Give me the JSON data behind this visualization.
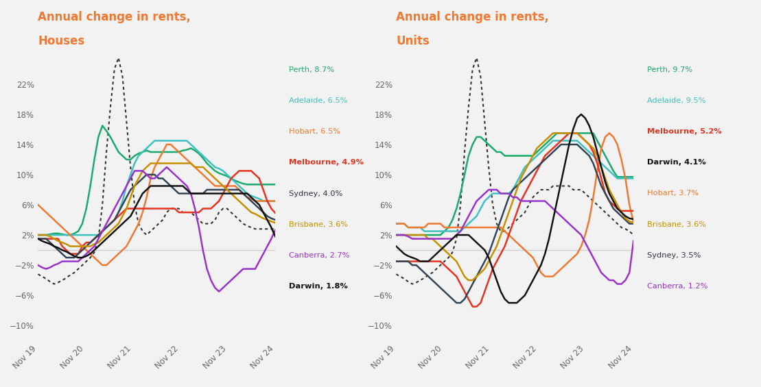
{
  "background_color": "#f2f2f2",
  "title_houses": "Annual change in rents,\nHouses",
  "title_units": "Annual change in rents,\nUnits",
  "title_color": "#f07830",
  "x_labels": [
    "Nov 19",
    "Nov 20",
    "Nov 21",
    "Nov 22",
    "Nov 23",
    "Nov 24"
  ],
  "ylim": [
    -12,
    27
  ],
  "yticks": [
    -10,
    -6,
    -2,
    2,
    6,
    10,
    14,
    18,
    22
  ],
  "colors": {
    "Perth": "#1aaa6e",
    "Adelaide": "#40c0c0",
    "Hobart": "#f07830",
    "Melbourne": "#e8321e",
    "Sydney": "#222233",
    "Brisbane": "#c89000",
    "Canberra": "#9932cc",
    "Darwin": "#222233",
    "dotted": "#333333"
  },
  "houses_legend": [
    {
      "label": "Perth, 8.7%",
      "color": "#1aaa6e",
      "bold": false
    },
    {
      "label": "Adelaide, 6.5%",
      "color": "#40c0c0",
      "bold": false
    },
    {
      "label": "Hobart, 6.5%",
      "color": "#f07830",
      "bold": false
    },
    {
      "label": "Melbourne, 4.9%",
      "color": "#e8321e",
      "bold": true
    },
    {
      "label": "Sydney, 4.0%",
      "color": "#333344",
      "bold": false
    },
    {
      "label": "Brisbane, 3.6%",
      "color": "#c89000",
      "bold": false
    },
    {
      "label": "Canberra, 2.7%",
      "color": "#9932cc",
      "bold": false
    },
    {
      "label": "Darwin, 1.8%",
      "color": "#111111",
      "bold": true
    }
  ],
  "units_legend": [
    {
      "label": "Perth, 9.7%",
      "color": "#1aaa6e",
      "bold": false
    },
    {
      "label": "Adelaide, 9.5%",
      "color": "#40c0c0",
      "bold": false
    },
    {
      "label": "Melbourne, 5.2%",
      "color": "#e8321e",
      "bold": true
    },
    {
      "label": "Darwin, 4.1%",
      "color": "#111111",
      "bold": true
    },
    {
      "label": "Hobart, 3.7%",
      "color": "#f07830",
      "bold": false
    },
    {
      "label": "Brisbane, 3.6%",
      "color": "#c89000",
      "bold": false
    },
    {
      "label": "Sydney, 3.5%",
      "color": "#333344",
      "bold": false
    },
    {
      "label": "Canberra, 1.2%",
      "color": "#9932cc",
      "bold": false
    }
  ],
  "houses": {
    "Perth": [
      2.0,
      2.0,
      2.0,
      2.1,
      2.2,
      2.2,
      2.1,
      2.0,
      2.0,
      2.2,
      2.5,
      3.5,
      5.5,
      8.5,
      12.0,
      15.0,
      16.5,
      15.8,
      15.0,
      14.0,
      13.0,
      12.5,
      12.0,
      12.0,
      12.5,
      12.8,
      13.0,
      13.2,
      13.0,
      13.0,
      13.0,
      13.0,
      13.0,
      13.0,
      13.0,
      13.0,
      13.2,
      13.3,
      13.5,
      13.2,
      12.8,
      12.2,
      11.5,
      11.0,
      10.5,
      10.2,
      10.0,
      9.8,
      9.5,
      9.2,
      9.0,
      8.8,
      8.7,
      8.7,
      8.7,
      8.7,
      8.7,
      8.7,
      8.7,
      8.7
    ],
    "Adelaide": [
      2.0,
      2.0,
      2.0,
      2.0,
      2.0,
      2.0,
      2.0,
      2.0,
      2.0,
      2.0,
      2.0,
      2.0,
      2.0,
      2.0,
      2.0,
      2.0,
      2.5,
      3.0,
      3.5,
      4.0,
      5.0,
      6.5,
      8.5,
      10.0,
      11.5,
      12.5,
      13.0,
      13.5,
      14.0,
      14.5,
      14.5,
      14.5,
      14.5,
      14.5,
      14.5,
      14.5,
      14.5,
      14.5,
      14.0,
      13.5,
      13.0,
      12.5,
      12.0,
      11.5,
      11.0,
      10.8,
      10.5,
      10.0,
      9.5,
      9.0,
      8.5,
      8.0,
      7.5,
      7.2,
      7.0,
      6.8,
      6.5,
      6.5,
      6.5,
      6.5
    ],
    "Hobart": [
      6.0,
      5.5,
      5.0,
      4.5,
      4.0,
      3.5,
      3.0,
      2.5,
      2.0,
      1.5,
      1.0,
      0.5,
      0.0,
      -0.5,
      -1.0,
      -1.5,
      -2.0,
      -2.0,
      -1.5,
      -1.0,
      -0.5,
      0.0,
      0.5,
      1.5,
      2.5,
      3.5,
      5.0,
      7.0,
      9.5,
      11.0,
      12.0,
      13.0,
      14.0,
      14.0,
      13.5,
      13.0,
      12.5,
      12.0,
      11.5,
      11.0,
      10.5,
      10.0,
      9.5,
      9.0,
      8.5,
      8.5,
      8.5,
      8.5,
      8.5,
      8.5,
      8.0,
      7.5,
      7.0,
      6.8,
      6.5,
      6.5,
      6.5,
      6.5,
      6.5,
      6.5
    ],
    "Melbourne": [
      1.5,
      1.5,
      1.5,
      1.5,
      1.5,
      1.5,
      0.5,
      0.0,
      -0.5,
      -0.5,
      -0.5,
      0.5,
      1.0,
      1.0,
      1.5,
      2.0,
      2.5,
      3.0,
      3.5,
      4.0,
      4.5,
      5.0,
      5.5,
      5.5,
      5.5,
      5.5,
      5.5,
      5.5,
      5.5,
      5.5,
      5.5,
      5.5,
      5.5,
      5.5,
      5.5,
      5.0,
      5.0,
      5.0,
      5.0,
      5.0,
      5.0,
      5.5,
      5.5,
      5.5,
      6.0,
      6.5,
      7.5,
      8.5,
      9.5,
      10.0,
      10.5,
      10.5,
      10.5,
      10.5,
      10.0,
      9.5,
      8.0,
      6.5,
      5.5,
      4.9
    ],
    "Sydney": [
      1.5,
      1.5,
      1.5,
      1.0,
      0.5,
      0.0,
      -0.5,
      -1.0,
      -1.0,
      -1.0,
      -0.5,
      0.0,
      0.5,
      1.0,
      1.5,
      2.0,
      2.5,
      3.0,
      3.5,
      4.0,
      5.0,
      6.0,
      7.0,
      8.0,
      8.5,
      9.0,
      9.5,
      10.0,
      10.0,
      10.0,
      9.5,
      9.5,
      9.0,
      8.5,
      8.0,
      7.5,
      7.5,
      7.5,
      7.5,
      7.5,
      7.5,
      7.5,
      8.0,
      8.0,
      8.0,
      8.0,
      8.0,
      8.0,
      8.0,
      8.0,
      8.0,
      7.5,
      7.0,
      6.5,
      6.0,
      5.5,
      5.0,
      4.5,
      4.2,
      4.0
    ],
    "Brisbane": [
      2.0,
      2.0,
      2.0,
      1.8,
      1.5,
      1.2,
      1.0,
      0.8,
      0.5,
      0.5,
      0.5,
      0.5,
      0.5,
      0.5,
      0.8,
      1.0,
      1.5,
      2.0,
      2.5,
      3.0,
      3.5,
      4.5,
      5.5,
      7.0,
      8.5,
      9.5,
      10.5,
      11.0,
      11.5,
      11.5,
      11.5,
      11.5,
      11.5,
      11.5,
      11.5,
      11.5,
      11.5,
      11.5,
      11.5,
      11.0,
      11.0,
      11.0,
      10.5,
      10.0,
      9.5,
      9.0,
      8.5,
      8.0,
      7.5,
      7.0,
      6.5,
      6.0,
      5.5,
      5.0,
      4.8,
      4.5,
      4.2,
      4.0,
      3.8,
      3.6
    ],
    "Canberra": [
      -2.0,
      -2.3,
      -2.5,
      -2.3,
      -2.0,
      -1.8,
      -1.5,
      -1.5,
      -1.5,
      -1.5,
      -1.5,
      -1.0,
      -0.5,
      0.0,
      0.5,
      1.5,
      2.5,
      3.5,
      4.5,
      5.5,
      6.5,
      7.5,
      8.5,
      9.5,
      10.5,
      10.5,
      10.5,
      10.0,
      9.5,
      9.5,
      10.0,
      10.5,
      11.0,
      10.5,
      10.0,
      9.5,
      9.0,
      8.5,
      7.5,
      5.5,
      3.0,
      0.0,
      -2.5,
      -4.0,
      -5.0,
      -5.5,
      -5.0,
      -4.5,
      -4.0,
      -3.5,
      -3.0,
      -2.5,
      -2.5,
      -2.5,
      -2.5,
      -1.5,
      -0.5,
      0.5,
      1.5,
      2.7
    ],
    "Darwin": [
      1.5,
      1.2,
      1.0,
      0.8,
      0.5,
      0.3,
      0.0,
      -0.2,
      -0.5,
      -0.8,
      -1.0,
      -1.0,
      -0.8,
      -0.5,
      0.0,
      0.5,
      1.0,
      1.5,
      2.0,
      2.5,
      3.0,
      3.5,
      4.0,
      4.5,
      5.5,
      6.5,
      7.5,
      8.0,
      8.5,
      8.5,
      8.5,
      8.5,
      8.5,
      8.5,
      8.5,
      8.5,
      8.5,
      8.0,
      7.5,
      7.5,
      7.5,
      7.5,
      7.5,
      7.5,
      7.5,
      7.5,
      7.5,
      7.5,
      7.5,
      7.5,
      7.5,
      7.5,
      7.5,
      7.0,
      6.5,
      6.0,
      5.0,
      4.0,
      3.0,
      1.8
    ],
    "dotted": [
      -3.2,
      -3.5,
      -3.8,
      -4.2,
      -4.5,
      -4.3,
      -4.0,
      -3.7,
      -3.3,
      -3.0,
      -2.5,
      -2.0,
      -1.5,
      -1.0,
      -0.3,
      1.5,
      6.0,
      13.0,
      19.0,
      24.0,
      25.5,
      23.0,
      17.0,
      11.0,
      6.0,
      3.5,
      2.5,
      2.0,
      2.5,
      3.0,
      3.5,
      4.0,
      5.0,
      5.5,
      5.5,
      5.5,
      5.0,
      5.0,
      5.0,
      4.5,
      4.0,
      3.5,
      3.5,
      3.5,
      4.0,
      5.0,
      5.5,
      5.5,
      5.0,
      4.5,
      4.0,
      3.5,
      3.2,
      3.0,
      2.8,
      2.8,
      2.8,
      2.8,
      2.8,
      2.8
    ]
  },
  "units": {
    "Perth": [
      2.0,
      2.0,
      2.0,
      2.0,
      2.0,
      2.0,
      2.0,
      2.0,
      2.0,
      2.0,
      2.0,
      2.0,
      2.5,
      3.0,
      4.0,
      5.5,
      7.5,
      10.0,
      12.5,
      14.0,
      15.0,
      15.0,
      14.5,
      14.0,
      13.5,
      13.0,
      13.0,
      12.5,
      12.5,
      12.5,
      12.5,
      12.5,
      12.5,
      12.5,
      12.5,
      13.0,
      13.5,
      14.0,
      14.5,
      15.0,
      15.5,
      15.5,
      15.5,
      15.5,
      15.5,
      15.5,
      15.5,
      15.5,
      15.5,
      15.5,
      14.5,
      13.5,
      12.5,
      11.5,
      10.5,
      9.7,
      9.7,
      9.7,
      9.7,
      9.7
    ],
    "Adelaide": [
      3.5,
      3.5,
      3.5,
      3.0,
      3.0,
      3.0,
      3.0,
      2.5,
      2.5,
      2.5,
      2.5,
      2.5,
      2.5,
      2.5,
      2.5,
      2.5,
      2.5,
      3.0,
      3.5,
      4.0,
      4.5,
      5.5,
      6.5,
      7.0,
      7.5,
      7.5,
      7.5,
      7.5,
      7.5,
      8.0,
      9.0,
      10.0,
      11.0,
      11.5,
      12.0,
      12.5,
      13.0,
      13.5,
      14.0,
      14.5,
      14.5,
      14.5,
      14.5,
      14.5,
      14.5,
      14.5,
      14.0,
      13.5,
      13.0,
      12.5,
      12.0,
      11.5,
      11.0,
      10.5,
      10.0,
      9.5,
      9.5,
      9.5,
      9.5,
      9.5
    ],
    "Hobart": [
      3.5,
      3.5,
      3.5,
      3.0,
      3.0,
      3.0,
      3.0,
      3.0,
      3.5,
      3.5,
      3.5,
      3.5,
      3.0,
      3.0,
      3.0,
      3.0,
      3.0,
      3.0,
      3.0,
      3.0,
      3.0,
      3.0,
      3.0,
      3.0,
      3.0,
      3.0,
      3.0,
      2.5,
      2.0,
      1.5,
      1.0,
      0.5,
      0.0,
      -0.5,
      -1.0,
      -2.0,
      -3.0,
      -3.5,
      -3.5,
      -3.5,
      -3.0,
      -2.5,
      -2.0,
      -1.5,
      -1.0,
      -0.5,
      0.5,
      2.0,
      4.0,
      7.0,
      10.5,
      13.5,
      15.0,
      15.5,
      15.0,
      14.0,
      12.0,
      9.5,
      6.0,
      3.7
    ],
    "Melbourne": [
      -1.5,
      -1.5,
      -1.5,
      -1.5,
      -1.5,
      -1.5,
      -1.5,
      -1.5,
      -1.5,
      -1.5,
      -1.5,
      -1.5,
      -2.0,
      -2.5,
      -3.0,
      -3.5,
      -4.5,
      -5.5,
      -6.5,
      -7.5,
      -7.5,
      -7.0,
      -5.5,
      -4.0,
      -2.5,
      -1.5,
      -0.5,
      0.5,
      2.0,
      3.5,
      5.0,
      6.5,
      7.5,
      8.5,
      9.5,
      10.5,
      11.5,
      12.5,
      13.0,
      13.5,
      14.0,
      14.5,
      15.0,
      15.5,
      15.5,
      15.5,
      15.0,
      14.5,
      14.0,
      13.0,
      11.5,
      9.5,
      7.5,
      6.5,
      6.0,
      5.5,
      5.2,
      5.2,
      5.2,
      5.2
    ],
    "Sydney": [
      -1.5,
      -1.5,
      -1.5,
      -1.5,
      -2.0,
      -2.0,
      -2.5,
      -3.0,
      -3.5,
      -4.0,
      -4.5,
      -5.0,
      -5.5,
      -6.0,
      -6.5,
      -7.0,
      -7.0,
      -6.5,
      -5.5,
      -4.5,
      -3.5,
      -2.5,
      -1.5,
      -0.5,
      1.0,
      2.5,
      4.0,
      5.5,
      7.0,
      8.0,
      8.5,
      9.0,
      9.5,
      10.0,
      10.5,
      11.0,
      11.5,
      12.0,
      12.5,
      13.0,
      13.5,
      14.0,
      14.0,
      14.0,
      14.0,
      14.0,
      13.5,
      13.0,
      12.5,
      11.5,
      10.0,
      8.5,
      7.5,
      6.5,
      5.5,
      5.0,
      4.5,
      4.0,
      3.5,
      3.5
    ],
    "Brisbane": [
      2.0,
      2.0,
      2.0,
      2.0,
      2.0,
      2.0,
      2.0,
      2.0,
      1.5,
      1.5,
      1.0,
      0.5,
      0.0,
      -0.5,
      -1.0,
      -1.5,
      -2.5,
      -3.5,
      -4.0,
      -4.0,
      -3.5,
      -3.0,
      -2.5,
      -1.5,
      -0.5,
      0.5,
      2.0,
      3.5,
      5.0,
      6.5,
      8.0,
      9.5,
      10.5,
      11.5,
      12.5,
      13.5,
      14.0,
      14.5,
      15.0,
      15.5,
      15.5,
      15.5,
      15.5,
      15.5,
      15.5,
      15.5,
      15.0,
      14.5,
      14.0,
      13.5,
      12.5,
      11.0,
      9.5,
      8.0,
      7.0,
      6.0,
      5.0,
      4.2,
      3.8,
      3.6
    ],
    "Canberra": [
      2.0,
      2.0,
      2.0,
      1.8,
      1.5,
      1.5,
      1.5,
      1.5,
      1.5,
      1.5,
      1.5,
      1.5,
      1.5,
      1.5,
      1.5,
      2.0,
      2.5,
      3.5,
      4.5,
      5.5,
      6.5,
      7.0,
      7.5,
      8.0,
      8.0,
      8.0,
      7.5,
      7.5,
      7.5,
      7.0,
      7.0,
      6.5,
      6.5,
      6.5,
      6.5,
      6.5,
      6.5,
      6.5,
      6.0,
      5.5,
      5.0,
      4.5,
      4.0,
      3.5,
      3.0,
      2.5,
      2.0,
      1.0,
      0.0,
      -1.0,
      -2.0,
      -3.0,
      -3.5,
      -4.0,
      -4.0,
      -4.5,
      -4.5,
      -4.0,
      -3.0,
      1.2
    ],
    "Darwin": [
      0.5,
      0.0,
      -0.5,
      -0.8,
      -1.0,
      -1.2,
      -1.5,
      -1.5,
      -1.5,
      -1.0,
      -0.5,
      0.0,
      0.5,
      1.0,
      1.5,
      2.0,
      2.0,
      2.0,
      2.0,
      1.5,
      1.0,
      0.5,
      0.0,
      -1.0,
      -2.5,
      -4.0,
      -5.5,
      -6.5,
      -7.0,
      -7.0,
      -7.0,
      -6.5,
      -6.0,
      -5.0,
      -4.0,
      -3.0,
      -2.0,
      -0.5,
      1.5,
      4.0,
      6.5,
      9.0,
      11.5,
      14.0,
      16.0,
      17.5,
      18.0,
      17.5,
      16.5,
      15.0,
      13.0,
      11.0,
      9.0,
      7.5,
      6.5,
      5.5,
      5.0,
      4.5,
      4.2,
      4.1
    ],
    "dotted": [
      -3.2,
      -3.5,
      -3.8,
      -4.2,
      -4.5,
      -4.3,
      -4.0,
      -3.7,
      -3.3,
      -3.0,
      -2.5,
      -2.0,
      -1.5,
      -1.0,
      -0.3,
      1.5,
      6.0,
      13.0,
      19.0,
      24.0,
      25.5,
      23.0,
      17.0,
      11.0,
      6.0,
      3.5,
      2.5,
      2.5,
      3.0,
      3.5,
      4.0,
      4.5,
      5.0,
      6.0,
      7.0,
      7.5,
      8.0,
      8.0,
      8.0,
      8.5,
      8.5,
      8.5,
      8.5,
      8.5,
      8.0,
      8.0,
      8.0,
      7.5,
      7.0,
      6.5,
      6.0,
      5.5,
      5.0,
      4.5,
      4.0,
      3.5,
      3.0,
      2.8,
      2.5,
      2.0
    ]
  }
}
